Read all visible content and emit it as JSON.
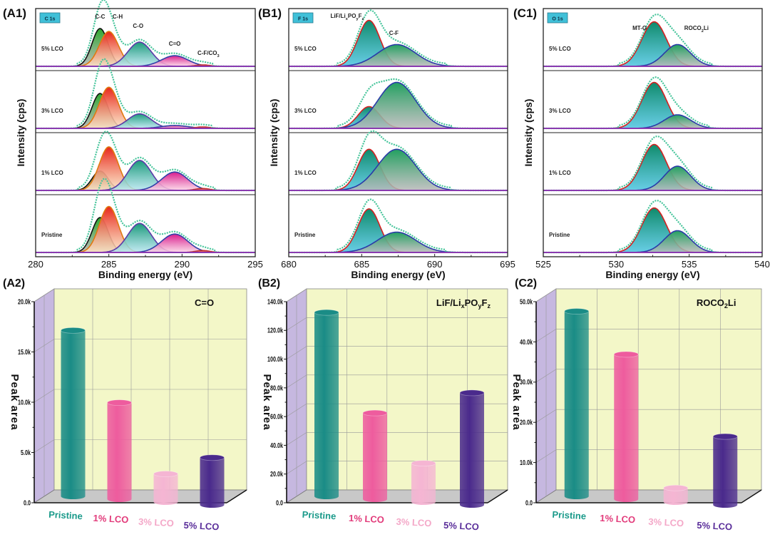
{
  "chart_data": [
    {
      "id": "A1",
      "type": "line",
      "panel_label": "(A1)",
      "region_label": "C 1s",
      "xlabel": "Binding energy (eV)",
      "ylabel": "Intensity (cps)",
      "xlim": [
        280,
        295
      ],
      "x_ticks": [
        "280",
        "285",
        "290",
        "295"
      ],
      "x_tick_values": [
        280,
        285,
        290,
        295
      ],
      "peak_labels": [
        {
          "text": "C-C",
          "x": 284.4
        },
        {
          "text": "C-H",
          "x": 285.6
        },
        {
          "text": "C-O",
          "x": 287.0
        },
        {
          "text": "C=O",
          "x": 289.5
        },
        {
          "text": "C-F/CO3",
          "x": 291.8
        }
      ],
      "components": [
        {
          "name": "C-C",
          "center": 284.4,
          "width": 0.55,
          "fill_top": "#2ea82e",
          "fill_bottom": "#b0b0b0",
          "stroke": "#111111"
        },
        {
          "name": "C-H",
          "center": 285.0,
          "width": 0.65,
          "fill_top": "#e8261a",
          "fill_bottom": "#fbe6c4",
          "stroke": "#e07a10"
        },
        {
          "name": "C-O",
          "center": 287.1,
          "width": 0.8,
          "fill_top": "#1a9a7a",
          "fill_bottom": "#b8e6f0",
          "stroke": "#5b3aa8"
        },
        {
          "name": "C=O",
          "center": 289.5,
          "width": 0.9,
          "fill_top": "#d81b8c",
          "fill_bottom": "#fbd3e6",
          "stroke": "#3040a8"
        },
        {
          "name": "C-F/CO3",
          "center": 291.4,
          "width": 0.5,
          "fill_top": "#e8261a",
          "fill_bottom": "#f09090",
          "stroke": "#c03030"
        }
      ],
      "series": [
        {
          "name": "5% LCO",
          "amplitudes": [
            0.78,
            0.72,
            0.5,
            0.22,
            0.03
          ]
        },
        {
          "name": "3% LCO",
          "amplitudes": [
            0.72,
            0.85,
            0.3,
            0.06,
            0.03
          ]
        },
        {
          "name": "1% LCO",
          "amplitudes": [
            0.4,
            0.9,
            0.62,
            0.38,
            0.04
          ]
        },
        {
          "name": "Pristine",
          "amplitudes": [
            0.72,
            0.95,
            0.6,
            0.38,
            0.04
          ]
        }
      ]
    },
    {
      "id": "B1",
      "type": "line",
      "panel_label": "(B1)",
      "region_label": "F 1s",
      "xlabel": "Binding energy (eV)",
      "ylabel": "Intensity (cps)",
      "xlim": [
        680,
        695
      ],
      "x_ticks": [
        "680",
        "685",
        "690",
        "695"
      ],
      "x_tick_values": [
        680,
        685,
        690,
        695
      ],
      "peak_labels": [
        {
          "text": "LiF/LixPOyFz",
          "x": 684.0
        },
        {
          "text": "C-F",
          "x": 687.2
        }
      ],
      "components": [
        {
          "name": "LiF/LixPOyFz",
          "center": 685.5,
          "width": 0.75,
          "fill_top": "#0f8a6a",
          "fill_bottom": "#4cc4e0",
          "stroke": "#d42020"
        },
        {
          "name": "C-F",
          "center": 687.4,
          "width": 1.3,
          "fill_top": "#22a060",
          "fill_bottom": "#b8b8b8",
          "stroke": "#2a3aa8"
        }
      ],
      "series": [
        {
          "name": "5% LCO",
          "amplitudes": [
            0.95,
            0.45
          ]
        },
        {
          "name": "3% LCO",
          "amplitudes": [
            0.45,
            0.95
          ]
        },
        {
          "name": "1% LCO",
          "amplitudes": [
            0.85,
            0.85
          ]
        },
        {
          "name": "Pristine",
          "amplitudes": [
            0.9,
            0.42
          ]
        }
      ]
    },
    {
      "id": "C1",
      "type": "line",
      "panel_label": "(C1)",
      "region_label": "O 1s",
      "xlabel": "Binding energy (eV)",
      "ylabel": "Intensity (cps)",
      "xlim": [
        525,
        540
      ],
      "x_ticks": [
        "525",
        "530",
        "535",
        "540"
      ],
      "x_tick_values": [
        525,
        530,
        535,
        540
      ],
      "peak_labels": [
        {
          "text": "MT-O",
          "x": 531.6
        },
        {
          "text": "ROCO2Li",
          "x": 535.5
        }
      ],
      "components": [
        {
          "name": "MT-O",
          "center": 532.6,
          "width": 0.85,
          "fill_top": "#0f8a6a",
          "fill_bottom": "#4cc4e0",
          "stroke": "#d42020"
        },
        {
          "name": "ROCO2Li",
          "center": 534.2,
          "width": 0.9,
          "fill_top": "#22a060",
          "fill_bottom": "#b8b8b8",
          "stroke": "#2a3aa8"
        }
      ],
      "series": [
        {
          "name": "5% LCO",
          "amplitudes": [
            0.92,
            0.45
          ]
        },
        {
          "name": "3% LCO",
          "amplitudes": [
            0.95,
            0.28
          ]
        },
        {
          "name": "1% LCO",
          "amplitudes": [
            0.95,
            0.5
          ]
        },
        {
          "name": "Pristine",
          "amplitudes": [
            0.92,
            0.45
          ]
        }
      ]
    },
    {
      "id": "A2",
      "type": "bar",
      "panel_label": "(A2)",
      "annotation": "C=O",
      "ylabel": "Peak area",
      "ylim": [
        0,
        20000
      ],
      "y_ticks": [
        "0.0",
        "5.0k",
        "10.0k",
        "15.0k",
        "20.0k"
      ],
      "y_tick_values": [
        0,
        5000,
        10000,
        15000,
        20000
      ],
      "categories": [
        "Pristine",
        "1% LCO",
        "3% LCO",
        "5% LCO"
      ],
      "values": [
        16500,
        9600,
        2800,
        4700
      ]
    },
    {
      "id": "B2",
      "type": "bar",
      "panel_label": "(B2)",
      "annotation": "LiF/LixPOyFz",
      "ylabel": "Peak area",
      "ylim": [
        0,
        140000
      ],
      "y_ticks": [
        "0.0",
        "20.0k",
        "40.0k",
        "60.0k",
        "80.0k",
        "100.0k",
        "120.0k",
        "140.0k"
      ],
      "y_tick_values": [
        0,
        20000,
        40000,
        60000,
        80000,
        100000,
        120000,
        140000
      ],
      "categories": [
        "Pristine",
        "1% LCO",
        "3% LCO",
        "5% LCO"
      ],
      "values": [
        128000,
        60000,
        27000,
        78000
      ]
    },
    {
      "id": "C2",
      "type": "bar",
      "panel_label": "(C2)",
      "annotation": "ROCO2Li",
      "ylabel": "Peak area",
      "ylim": [
        0,
        50000
      ],
      "y_ticks": [
        "0.0",
        "10.0k",
        "20.0k",
        "30.0k",
        "40.0k",
        "50.0k"
      ],
      "y_tick_values": [
        0,
        10000,
        20000,
        30000,
        40000,
        50000
      ],
      "categories": [
        "Pristine",
        "1% LCO",
        "3% LCO",
        "5% LCO"
      ],
      "values": [
        46000,
        36000,
        3500,
        17000
      ]
    }
  ],
  "bar_colors": [
    "#1a8c86",
    "#ee5c9e",
    "#f5b5d3",
    "#4a2a8c"
  ],
  "bar_label_colors": [
    "#1a9a8a",
    "#e23a7a",
    "#f4a8c8",
    "#5a2e9a"
  ],
  "spectrum_colors": {
    "envelope": "#45c49a",
    "baseline": "#8a3ab0",
    "badge_fill": "#40c0d8"
  }
}
